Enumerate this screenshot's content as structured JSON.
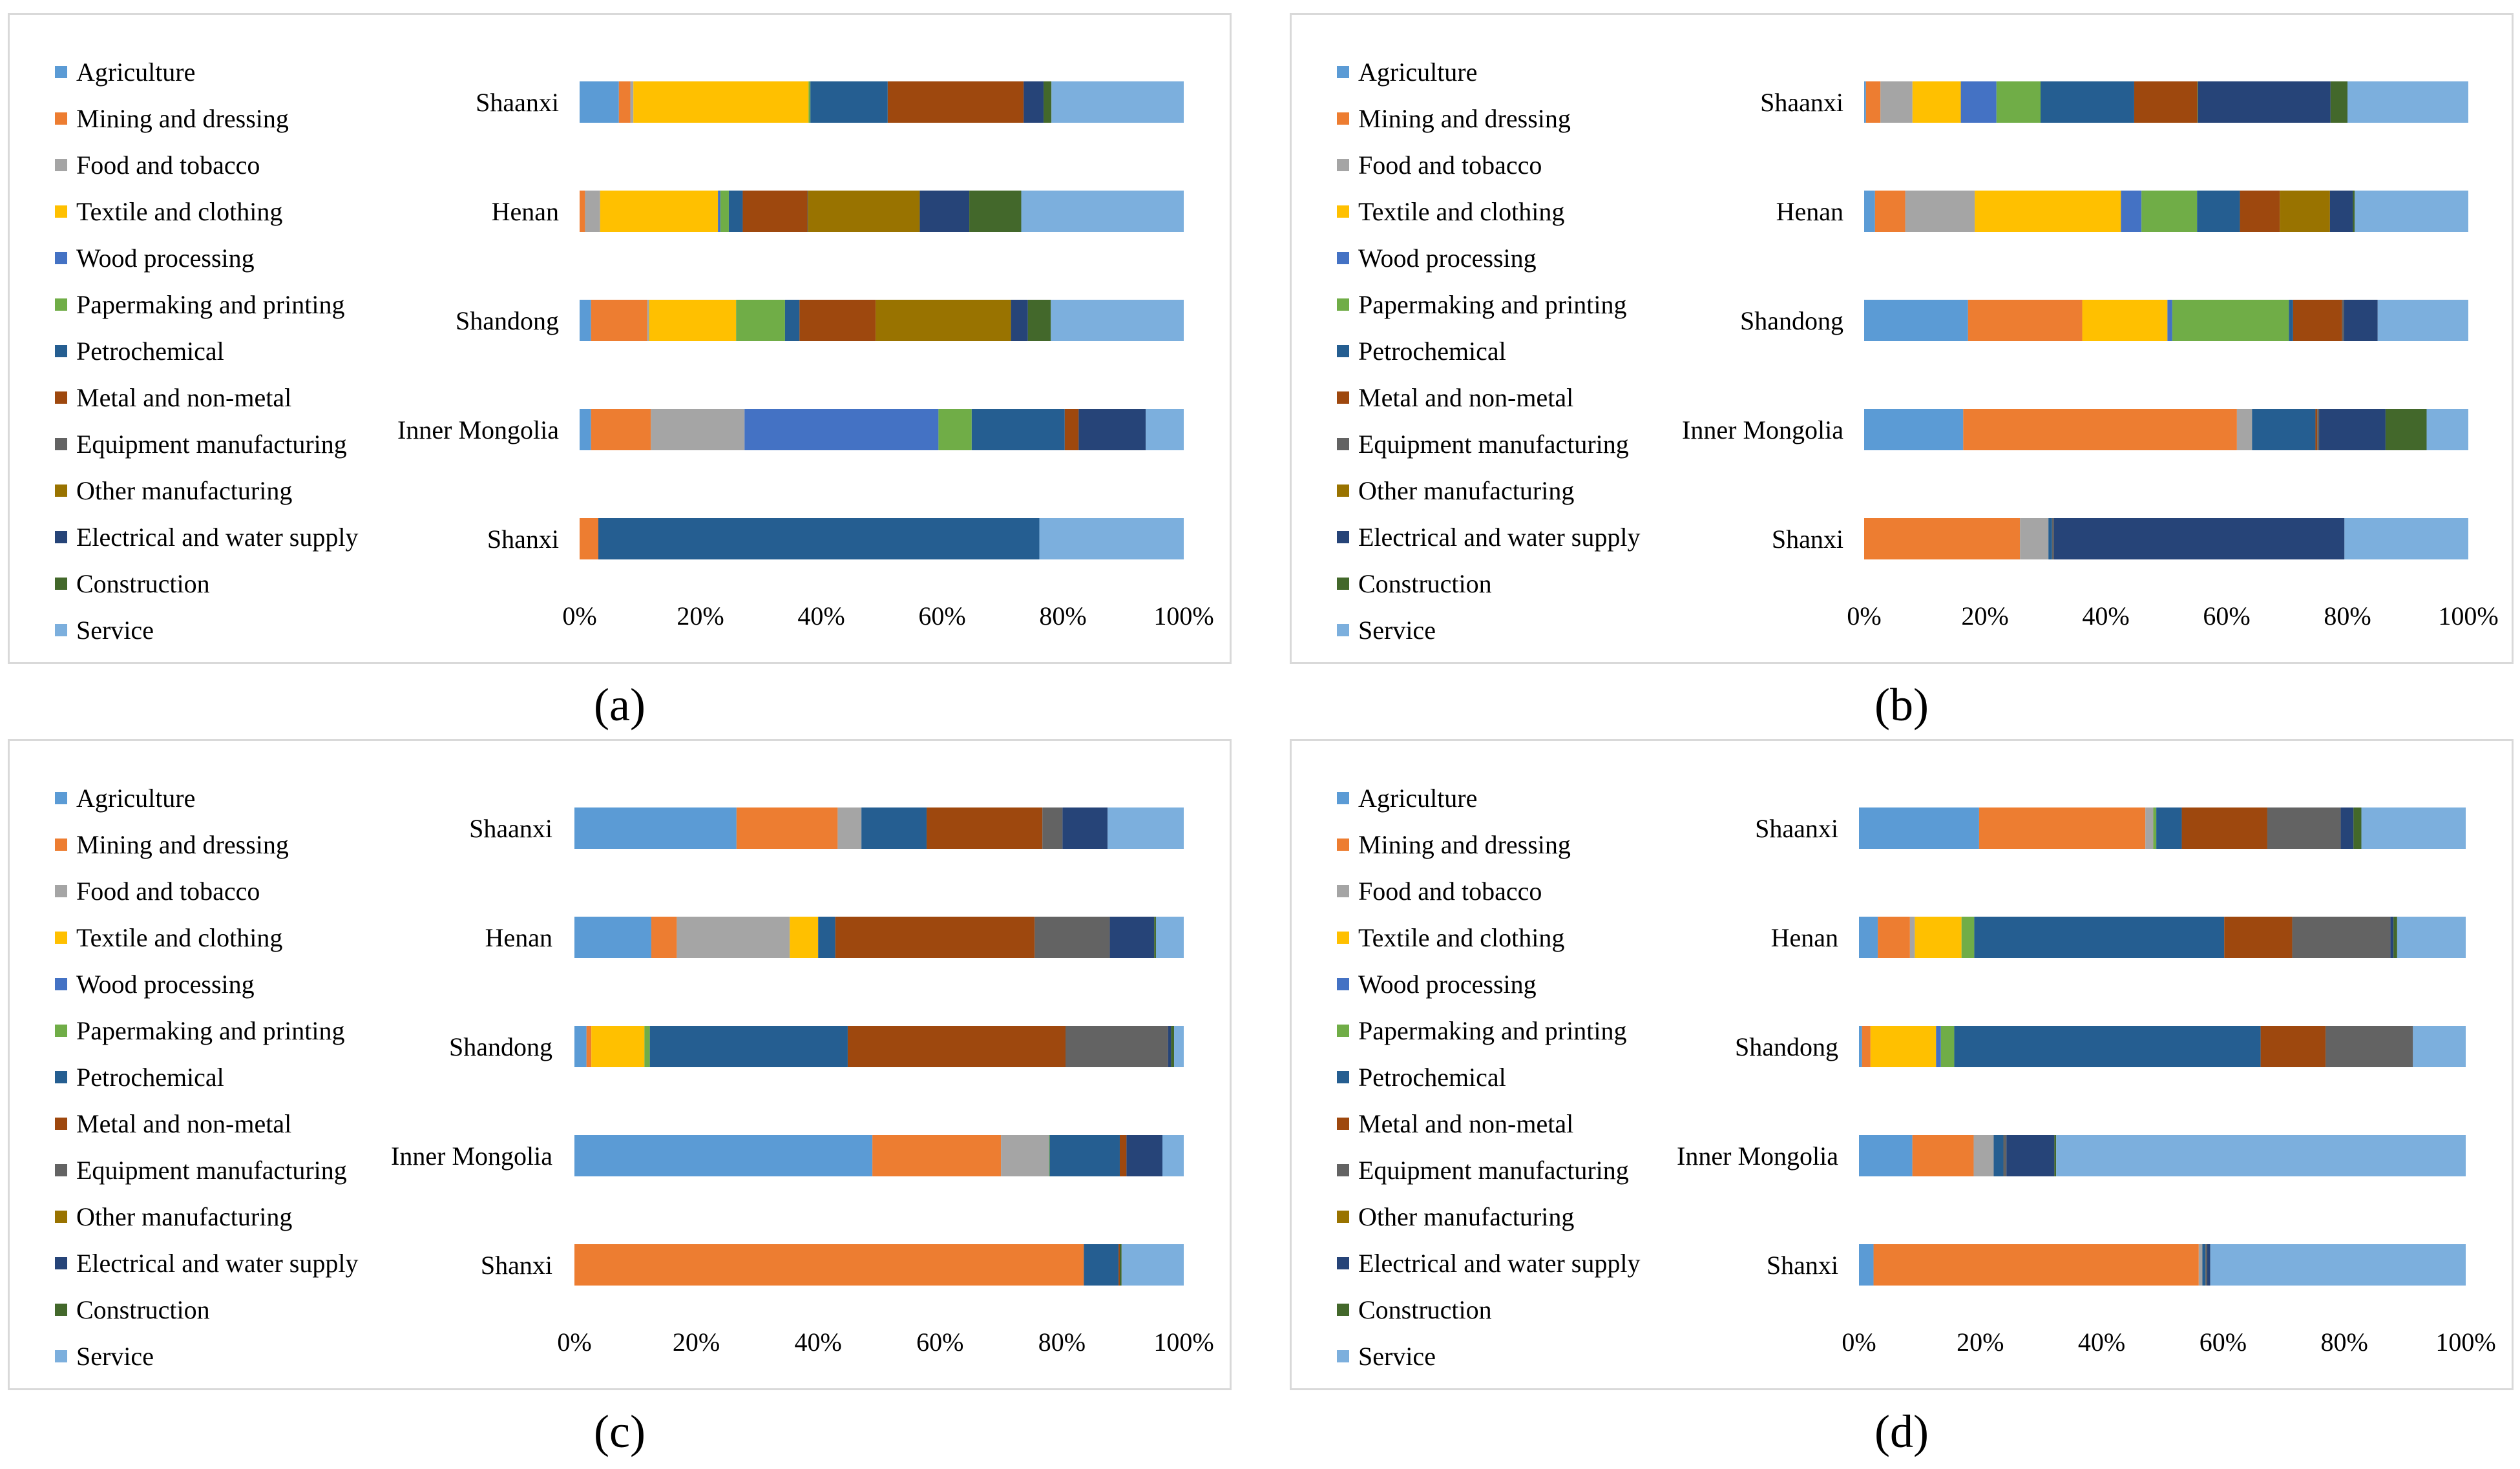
{
  "chart_data": [
    {
      "type": "bar",
      "stacked": "percent",
      "orientation": "horizontal",
      "caption": "(a)",
      "categories": [
        "Shaanxi",
        "Henan",
        "Shandong",
        "Inner Mongolia",
        "Shanxi"
      ],
      "series": [
        {
          "name": "Agriculture",
          "color": "#5b9bd5",
          "values": [
            6.5,
            0,
            1.9,
            1.9,
            0
          ]
        },
        {
          "name": "Mining and dressing",
          "color": "#ed7d31",
          "values": [
            1.9,
            0.9,
            9.3,
            9.9,
            3.1
          ]
        },
        {
          "name": "Food and tobacco",
          "color": "#a5a5a5",
          "values": [
            0.5,
            2.5,
            0.3,
            15.5,
            0
          ]
        },
        {
          "name": "Textile and clothing",
          "color": "#ffc000",
          "values": [
            29,
            19.5,
            14.4,
            0,
            0
          ]
        },
        {
          "name": "Wood processing",
          "color": "#4472c4",
          "values": [
            0,
            0.4,
            0,
            32.1,
            0
          ]
        },
        {
          "name": "Papermaking and printing",
          "color": "#70ad47",
          "values": [
            0.3,
            1.4,
            8.1,
            5.5,
            0
          ]
        },
        {
          "name": "Petrochemical",
          "color": "#255e91",
          "values": [
            12.8,
            2.3,
            2.4,
            15.4,
            73
          ]
        },
        {
          "name": "Metal and non-metal",
          "color": "#9e480e",
          "values": [
            22.5,
            10.7,
            12.6,
            2.3,
            0
          ]
        },
        {
          "name": "Equipment manufacturing",
          "color": "#636363",
          "values": [
            0,
            0.1,
            0,
            0,
            0
          ]
        },
        {
          "name": "Other manufacturing",
          "color": "#997300",
          "values": [
            0,
            18.5,
            22.4,
            0,
            0
          ]
        },
        {
          "name": "Electrical and water supply",
          "color": "#264478",
          "values": [
            3.3,
            8.2,
            2.8,
            11.1,
            0
          ]
        },
        {
          "name": "Construction",
          "color": "#43682b",
          "values": [
            1.3,
            8.6,
            3.8,
            0,
            0
          ]
        },
        {
          "name": "Service",
          "color": "#7cafdd",
          "values": [
            21.9,
            26.9,
            22,
            6.3,
            23.9
          ]
        }
      ],
      "xticks": [
        "0%",
        "20%",
        "40%",
        "60%",
        "80%",
        "100%"
      ],
      "xlim": [
        0,
        100
      ]
    },
    {
      "type": "bar",
      "stacked": "percent",
      "orientation": "horizontal",
      "caption": "(b)",
      "categories": [
        "Shaanxi",
        "Henan",
        "Shandong",
        "Inner Mongolia",
        "Shanxi"
      ],
      "series": [
        {
          "name": "Agriculture",
          "color": "#5b9bd5",
          "values": [
            0.3,
            1.8,
            17.2,
            16.4,
            0
          ]
        },
        {
          "name": "Mining and dressing",
          "color": "#ed7d31",
          "values": [
            2.4,
            5,
            18.9,
            45.3,
            25.8
          ]
        },
        {
          "name": "Food and tobacco",
          "color": "#a5a5a5",
          "values": [
            5.3,
            11.5,
            0,
            2.5,
            4.7
          ]
        },
        {
          "name": "Textile and clothing",
          "color": "#ffc000",
          "values": [
            8,
            24.2,
            14.1,
            0,
            0
          ]
        },
        {
          "name": "Wood processing",
          "color": "#4472c4",
          "values": [
            5.9,
            3.4,
            0.8,
            0,
            0
          ]
        },
        {
          "name": "Papermaking and printing",
          "color": "#70ad47",
          "values": [
            7.3,
            9.2,
            19.3,
            0,
            0
          ]
        },
        {
          "name": "Petrochemical",
          "color": "#255e91",
          "values": [
            15.5,
            7.1,
            0.7,
            10.5,
            0.6
          ]
        },
        {
          "name": "Metal and non-metal",
          "color": "#9e480e",
          "values": [
            10.4,
            6.6,
            8.1,
            0.3,
            0
          ]
        },
        {
          "name": "Equipment manufacturing",
          "color": "#636363",
          "values": [
            0,
            0,
            0.3,
            0.3,
            0.3
          ]
        },
        {
          "name": "Other manufacturing",
          "color": "#997300",
          "values": [
            0.1,
            8.3,
            0,
            0,
            0
          ]
        },
        {
          "name": "Electrical and water supply",
          "color": "#264478",
          "values": [
            22,
            3.8,
            5.6,
            11,
            48.1
          ]
        },
        {
          "name": "Construction",
          "color": "#43682b",
          "values": [
            2.8,
            0.3,
            0,
            6.8,
            0
          ]
        },
        {
          "name": "Service",
          "color": "#7cafdd",
          "values": [
            20,
            18.8,
            15,
            6.9,
            20.5
          ]
        }
      ],
      "xticks": [
        "0%",
        "20%",
        "40%",
        "60%",
        "80%",
        "100%"
      ],
      "xlim": [
        0,
        100
      ]
    },
    {
      "type": "bar",
      "stacked": "percent",
      "orientation": "horizontal",
      "caption": "(c)",
      "categories": [
        "Shaanxi",
        "Henan",
        "Shandong",
        "Inner Mongolia",
        "Shanxi"
      ],
      "series": [
        {
          "name": "Agriculture",
          "color": "#5b9bd5",
          "values": [
            26.6,
            13,
            2,
            48.9,
            0
          ]
        },
        {
          "name": "Mining and dressing",
          "color": "#ed7d31",
          "values": [
            16.6,
            4.3,
            0.8,
            21.1,
            83.6
          ]
        },
        {
          "name": "Food and tobacco",
          "color": "#a5a5a5",
          "values": [
            3.9,
            19.1,
            0,
            7.9,
            0
          ]
        },
        {
          "name": "Textile and clothing",
          "color": "#ffc000",
          "values": [
            0,
            4.8,
            8.8,
            0,
            0
          ]
        },
        {
          "name": "Wood processing",
          "color": "#4472c4",
          "values": [
            0,
            0,
            0,
            0,
            0
          ]
        },
        {
          "name": "Papermaking and printing",
          "color": "#70ad47",
          "values": [
            0,
            0,
            0.9,
            0.1,
            0
          ]
        },
        {
          "name": "Petrochemical",
          "color": "#255e91",
          "values": [
            10.7,
            2.9,
            32.8,
            11.5,
            5.7
          ]
        },
        {
          "name": "Metal and non-metal",
          "color": "#9e480e",
          "values": [
            19,
            33.7,
            36.1,
            1.1,
            0.2
          ]
        },
        {
          "name": "Equipment manufacturing",
          "color": "#636363",
          "values": [
            3.3,
            12.7,
            17,
            0,
            0
          ]
        },
        {
          "name": "Other manufacturing",
          "color": "#997300",
          "values": [
            0,
            0,
            0,
            0,
            0
          ]
        },
        {
          "name": "Electrical and water supply",
          "color": "#264478",
          "values": [
            7.4,
            7.5,
            0.5,
            5.9,
            0
          ]
        },
        {
          "name": "Construction",
          "color": "#43682b",
          "values": [
            0,
            0.3,
            0.5,
            0,
            0.3
          ]
        },
        {
          "name": "Service",
          "color": "#7cafdd",
          "values": [
            12.5,
            4.7,
            1.6,
            3.5,
            10.2
          ]
        }
      ],
      "xticks": [
        "0%",
        "20%",
        "40%",
        "60%",
        "80%",
        "100%"
      ],
      "xlim": [
        0,
        100
      ]
    },
    {
      "type": "bar",
      "stacked": "percent",
      "orientation": "horizontal",
      "caption": "(d)",
      "categories": [
        "Shaanxi",
        "Henan",
        "Shandong",
        "Inner Mongolia",
        "Shanxi"
      ],
      "series": [
        {
          "name": "Agriculture",
          "color": "#5b9bd5",
          "values": [
            19.8,
            3.1,
            0.5,
            8.8,
            2.4
          ]
        },
        {
          "name": "Mining and dressing",
          "color": "#ed7d31",
          "values": [
            27.4,
            5.3,
            1.4,
            10.1,
            53.6
          ]
        },
        {
          "name": "Food and tobacco",
          "color": "#a5a5a5",
          "values": [
            1.3,
            0.8,
            0,
            3.3,
            0.6
          ]
        },
        {
          "name": "Textile and clothing",
          "color": "#ffc000",
          "values": [
            0,
            7.7,
            10.8,
            0,
            0
          ]
        },
        {
          "name": "Wood processing",
          "color": "#4472c4",
          "values": [
            0,
            0,
            0.8,
            0,
            0
          ]
        },
        {
          "name": "Papermaking and printing",
          "color": "#70ad47",
          "values": [
            0.5,
            2.1,
            2.2,
            0,
            0
          ]
        },
        {
          "name": "Petrochemical",
          "color": "#255e91",
          "values": [
            4.2,
            41.2,
            50.5,
            1.6,
            0.5
          ]
        },
        {
          "name": "Metal and non-metal",
          "color": "#9e480e",
          "values": [
            14.1,
            11.2,
            10.7,
            0,
            0
          ]
        },
        {
          "name": "Equipment manufacturing",
          "color": "#636363",
          "values": [
            12.1,
            16.2,
            14.4,
            0.5,
            0.3
          ]
        },
        {
          "name": "Other manufacturing",
          "color": "#997300",
          "values": [
            0,
            0,
            0,
            0,
            0
          ]
        },
        {
          "name": "Electrical and water supply",
          "color": "#264478",
          "values": [
            2.1,
            0.5,
            0,
            7.9,
            0.5
          ]
        },
        {
          "name": "Construction",
          "color": "#43682b",
          "values": [
            1.3,
            0.6,
            0,
            0.3,
            0
          ]
        },
        {
          "name": "Service",
          "color": "#7cafdd",
          "values": [
            17.2,
            11.3,
            8.7,
            67.5,
            42.1
          ]
        }
      ],
      "xticks": [
        "0%",
        "20%",
        "40%",
        "60%",
        "80%",
        "100%"
      ],
      "xlim": [
        0,
        100
      ]
    }
  ]
}
